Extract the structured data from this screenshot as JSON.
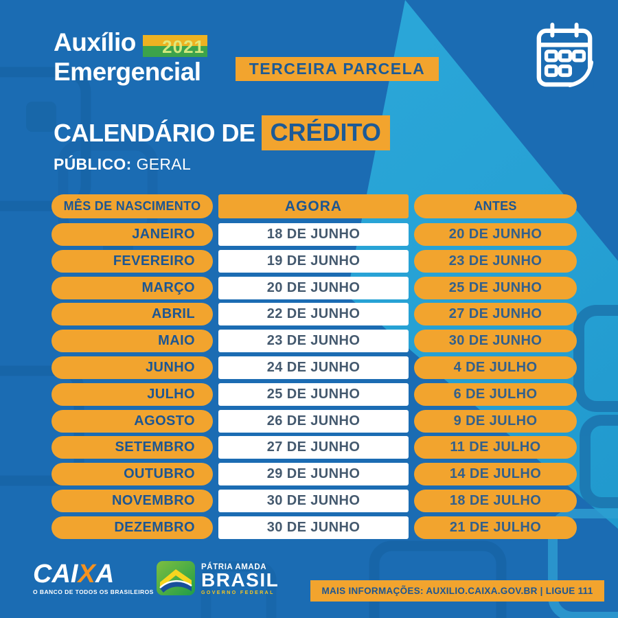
{
  "brand": {
    "logo_line1": "Auxílio",
    "logo_line2": "Emergencial",
    "year_badge": "2021",
    "parcel_badge": "TERCEIRA PARCELA"
  },
  "title": {
    "main": "CALENDÁRIO DE",
    "highlight": "CRÉDITO",
    "public_label": "PÚBLICO:",
    "public_value": "GERAL"
  },
  "table": {
    "columns": [
      "MÊS DE NASCIMENTO",
      "AGORA",
      "ANTES"
    ],
    "rows": [
      {
        "month": "JANEIRO",
        "agora": "18 DE JUNHO",
        "antes": "20 DE JUNHO"
      },
      {
        "month": "FEVEREIRO",
        "agora": "19 DE JUNHO",
        "antes": "23 DE JUNHO"
      },
      {
        "month": "MARÇO",
        "agora": "20 DE JUNHO",
        "antes": "25 DE JUNHO"
      },
      {
        "month": "ABRIL",
        "agora": "22 DE JUNHO",
        "antes": "27 DE JUNHO"
      },
      {
        "month": "MAIO",
        "agora": "23 DE JUNHO",
        "antes": "30 DE JUNHO"
      },
      {
        "month": "JUNHO",
        "agora": "24 DE JUNHO",
        "antes": "4 DE JULHO"
      },
      {
        "month": "JULHO",
        "agora": "25 DE JUNHO",
        "antes": "6 DE JULHO"
      },
      {
        "month": "AGOSTO",
        "agora": "26 DE JUNHO",
        "antes": "9 DE JULHO"
      },
      {
        "month": "SETEMBRO",
        "agora": "27 DE JUNHO",
        "antes": "11 DE JULHO"
      },
      {
        "month": "OUTUBRO",
        "agora": "29 DE JUNHO",
        "antes": "14 DE JULHO"
      },
      {
        "month": "NOVEMBRO",
        "agora": "30 DE JUNHO",
        "antes": "18 DE JULHO"
      },
      {
        "month": "DEZEMBRO",
        "agora": "30 DE JUNHO",
        "antes": "21 DE JULHO"
      }
    ]
  },
  "footer": {
    "caixa_part1": "CAI",
    "caixa_x": "X",
    "caixa_part2": "A",
    "caixa_tagline": "O BANCO DE TODOS OS BRASILEIROS",
    "gov_top": "PÁTRIA AMADA",
    "gov_name": "BRASIL",
    "gov_sub": "GOVERNO FEDERAL",
    "info_bar": "MAIS INFORMAÇÕES: AUXILIO.CAIXA.GOV.BR | LIGUE 111"
  },
  "icons": [
    "calendar-icon",
    "brazil-flag-icon"
  ],
  "colors": {
    "background_blue": "#1B6CB3",
    "accent_cyan": "#2AA4D7",
    "orange": "#F2A42E",
    "navy_text": "#1D5692",
    "date_text": "#44596E",
    "white": "#FFFFFF",
    "flag_green": "#1F9D49",
    "flag_yellow": "#F6D51F",
    "gov_yellow": "#F9C81E"
  }
}
